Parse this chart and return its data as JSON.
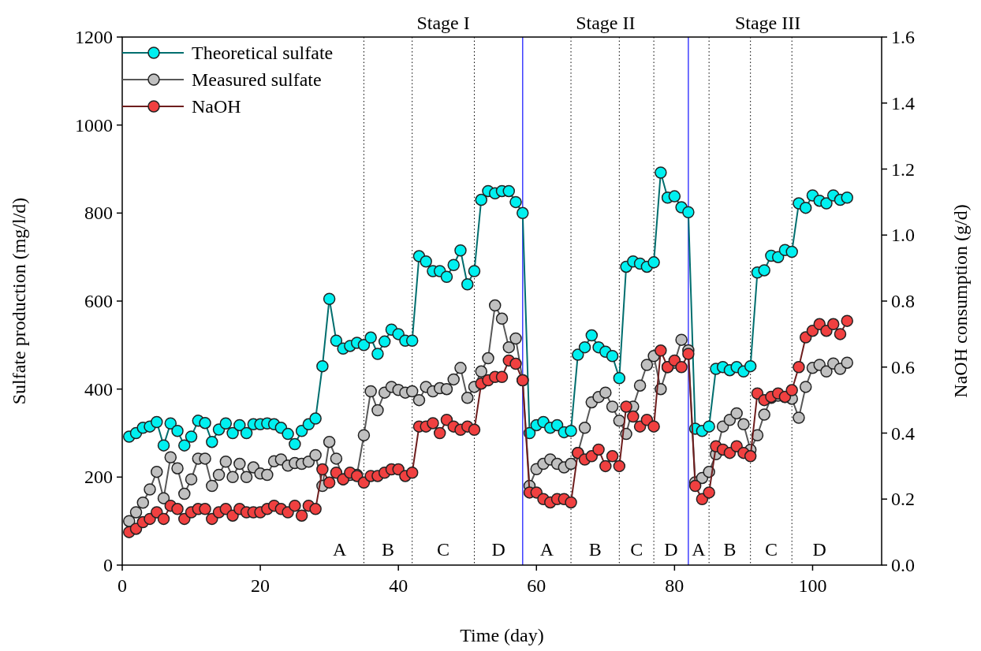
{
  "chart_data": {
    "type": "line",
    "xlabel": "Time (day)",
    "ylabel": "Sulfate production (mg/l/d)",
    "y2label": "NaOH consumption (g/d)",
    "x": [
      1,
      2,
      3,
      4,
      5,
      6,
      7,
      8,
      9,
      10,
      11,
      12,
      13,
      14,
      15,
      16,
      17,
      18,
      19,
      20,
      21,
      22,
      23,
      24,
      25,
      26,
      27,
      28,
      29,
      30,
      31,
      32,
      33,
      34,
      35,
      36,
      37,
      38,
      39,
      40,
      41,
      42,
      43,
      44,
      45,
      46,
      47,
      48,
      49,
      50,
      51,
      52,
      53,
      54,
      55,
      56,
      57,
      58,
      59,
      60,
      61,
      62,
      63,
      64,
      65,
      66,
      67,
      68,
      69,
      70,
      71,
      72,
      73,
      74,
      75,
      76,
      77,
      78,
      79,
      80,
      81,
      82,
      83,
      84,
      85,
      86,
      87,
      88,
      89,
      90,
      91,
      92,
      93,
      94,
      95,
      96,
      97,
      98,
      99,
      100,
      101,
      102,
      103,
      104,
      105
    ],
    "xlim": [
      0,
      110
    ],
    "xticks": [
      0,
      20,
      40,
      60,
      80,
      100
    ],
    "ylim": [
      0,
      1200
    ],
    "yticks": [
      0,
      200,
      400,
      600,
      800,
      1000,
      1200
    ],
    "y2lim": [
      0,
      1.6
    ],
    "y2ticks": [
      {
        "value": 0,
        "label": "0.0"
      },
      {
        "value": 0.2,
        "label": "0.2"
      },
      {
        "value": 0.4,
        "label": "0.4"
      },
      {
        "value": 0.6,
        "label": "0.6"
      },
      {
        "value": 0.8,
        "label": "0.8"
      },
      {
        "value": 1,
        "label": "1.0"
      },
      {
        "value": 1.2,
        "label": "1.2"
      },
      {
        "value": 1.4,
        "label": "1.4"
      },
      {
        "value": 1.6,
        "label": "1.6"
      }
    ],
    "marker": "circle",
    "legend": "top left",
    "grid": false,
    "series": [
      {
        "name": "Theoretical sulfate",
        "color": "#00f0f0",
        "values": [
          292,
          300,
          312,
          315,
          325,
          272,
          322,
          305,
          272,
          292,
          328,
          323,
          280,
          308,
          322,
          300,
          318,
          300,
          320,
          320,
          322,
          320,
          312,
          298,
          275,
          305,
          320,
          333,
          452,
          605,
          510,
          492,
          498,
          505,
          500,
          517,
          480,
          508,
          535,
          525,
          510,
          510,
          702,
          690,
          668,
          668,
          655,
          682,
          715,
          638,
          668,
          830,
          850,
          845,
          850,
          850,
          825,
          800,
          300,
          318,
          325,
          312,
          318,
          302,
          305,
          478,
          495,
          522,
          495,
          485,
          475,
          425,
          678,
          690,
          685,
          678,
          688,
          892,
          835,
          838,
          813,
          802,
          310,
          305,
          315,
          446,
          450,
          443,
          450,
          440,
          452,
          665,
          670,
          703,
          700,
          716,
          712,
          822,
          812,
          840,
          828,
          822,
          840,
          830,
          835
        ]
      },
      {
        "name": "Measured sulfate",
        "color": "#c0c0c0",
        "values": [
          100,
          120,
          142,
          172,
          212,
          152,
          245,
          220,
          162,
          195,
          242,
          242,
          180,
          205,
          235,
          200,
          230,
          200,
          222,
          208,
          205,
          236,
          240,
          226,
          232,
          230,
          235,
          250,
          180,
          280,
          242,
          195,
          205,
          205,
          295,
          395,
          352,
          392,
          405,
          398,
          392,
          395,
          375,
          405,
          395,
          402,
          400,
          422,
          448,
          380,
          405,
          440,
          470,
          590,
          560,
          495,
          515,
          420,
          180,
          218,
          230,
          240,
          230,
          222,
          230,
          255,
          312,
          370,
          382,
          392,
          360,
          328,
          298,
          360,
          408,
          455,
          475,
          400,
          450,
          460,
          512,
          488,
          188,
          198,
          212,
          252,
          315,
          330,
          345,
          320,
          262,
          295,
          342,
          380,
          385,
          382,
          378,
          335,
          405,
          448,
          455,
          440,
          458,
          446,
          460
        ]
      },
      {
        "name": "NaOH",
        "color": "#f04040",
        "axis": "y2",
        "values": [
          0.1,
          0.11,
          0.13,
          0.14,
          0.16,
          0.14,
          0.18,
          0.17,
          0.14,
          0.16,
          0.17,
          0.17,
          0.14,
          0.16,
          0.17,
          0.15,
          0.17,
          0.16,
          0.16,
          0.16,
          0.17,
          0.18,
          0.17,
          0.16,
          0.18,
          0.15,
          0.18,
          0.17,
          0.29,
          0.25,
          0.28,
          0.26,
          0.28,
          0.27,
          0.25,
          0.27,
          0.27,
          0.28,
          0.29,
          0.29,
          0.27,
          0.28,
          0.42,
          0.42,
          0.43,
          0.4,
          0.44,
          0.42,
          0.41,
          0.42,
          0.41,
          0.55,
          0.56,
          0.57,
          0.57,
          0.62,
          0.61,
          0.56,
          0.22,
          0.22,
          0.2,
          0.19,
          0.2,
          0.2,
          0.19,
          0.34,
          0.32,
          0.33,
          0.35,
          0.3,
          0.33,
          0.3,
          0.48,
          0.45,
          0.42,
          0.44,
          0.42,
          0.65,
          0.6,
          0.62,
          0.6,
          0.64,
          0.24,
          0.2,
          0.22,
          0.36,
          0.35,
          0.34,
          0.36,
          0.34,
          0.33,
          0.52,
          0.5,
          0.51,
          0.52,
          0.51,
          0.53,
          0.6,
          0.69,
          0.71,
          0.73,
          0.71,
          0.73,
          0.7,
          0.74
        ]
      }
    ],
    "ref_lines": [
      {
        "axis": "x",
        "value": 35,
        "color": "#000000",
        "line_style": "dotted"
      },
      {
        "axis": "x",
        "value": 42,
        "color": "#000000",
        "line_style": "dotted"
      },
      {
        "axis": "x",
        "value": 51,
        "color": "#000000",
        "line_style": "dotted"
      },
      {
        "axis": "x",
        "value": 58,
        "color": "#4040ff",
        "line_style": "solid"
      },
      {
        "axis": "x",
        "value": 65,
        "color": "#000000",
        "line_style": "dotted"
      },
      {
        "axis": "x",
        "value": 72,
        "color": "#000000",
        "line_style": "dotted"
      },
      {
        "axis": "x",
        "value": 77,
        "color": "#000000",
        "line_style": "dotted"
      },
      {
        "axis": "x",
        "value": 82,
        "color": "#4040ff",
        "line_style": "solid"
      },
      {
        "axis": "x",
        "value": 85,
        "color": "#000000",
        "line_style": "dotted"
      },
      {
        "axis": "x",
        "value": 91,
        "color": "#000000",
        "line_style": "dotted"
      },
      {
        "axis": "x",
        "value": 97,
        "color": "#000000",
        "line_style": "dotted"
      }
    ],
    "annotations": [
      "Stage I",
      "Stage II",
      "Stage III",
      "A",
      "B",
      "C",
      "D",
      "A",
      "B",
      "C",
      "D",
      "A",
      "B",
      "C",
      "D"
    ]
  }
}
